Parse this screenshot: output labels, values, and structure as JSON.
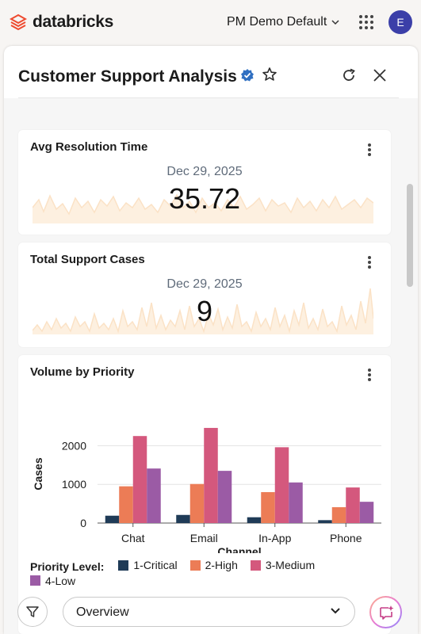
{
  "app": {
    "brand": "databricks",
    "workspace": "PM Demo Default",
    "user_initial": "E"
  },
  "dashboard": {
    "title": "Customer Support Analysis"
  },
  "widgets": {
    "avg_resolution": {
      "title": "Avg Resolution Time",
      "date": "Dec 29, 2025",
      "value": "35.72"
    },
    "total_cases": {
      "title": "Total Support Cases",
      "date": "Dec 29, 2025",
      "value": "9"
    },
    "volume_by_priority": {
      "title": "Volume by Priority"
    }
  },
  "chart_data": {
    "type": "bar",
    "xlabel": "Channel",
    "ylabel": "Cases",
    "ylim": [
      0,
      2500
    ],
    "yticks": [
      "0",
      "1000",
      "2000"
    ],
    "categories": [
      "Chat",
      "Email",
      "In-App",
      "Phone"
    ],
    "series": [
      {
        "name": "1-Critical",
        "color": "#1f3b57",
        "values": [
          190,
          210,
          150,
          75
        ]
      },
      {
        "name": "2-High",
        "color": "#ec7c56",
        "values": [
          950,
          1010,
          800,
          410
        ]
      },
      {
        "name": "3-Medium",
        "color": "#d4587d",
        "values": [
          2250,
          2460,
          1960,
          920
        ]
      },
      {
        "name": "4-Low",
        "color": "#9b5ba5",
        "values": [
          1410,
          1350,
          1050,
          550
        ]
      }
    ],
    "legend_title": "Priority Level:",
    "grid": true,
    "legend_position": "bottom"
  },
  "bottom": {
    "page_selected": "Overview"
  }
}
